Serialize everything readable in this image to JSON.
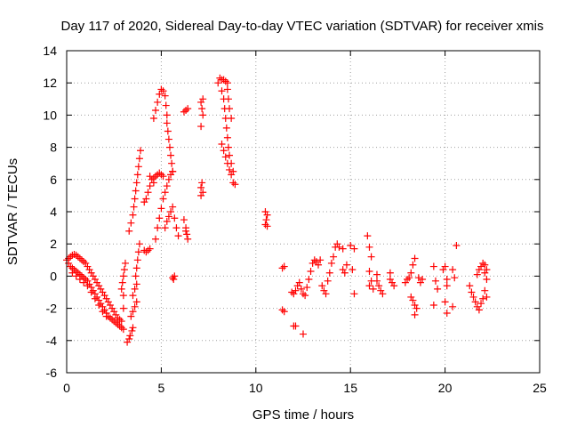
{
  "chart_data": {
    "type": "scatter",
    "title": "Day 117 of 2020, Sidereal Day-to-day VTEC variation (SDTVAR) for receiver xmis",
    "xlabel": "GPS time / hours",
    "ylabel": "SDTVAR / TECUs",
    "xlim": [
      0,
      25
    ],
    "ylim": [
      -6,
      14
    ],
    "xticks": [
      0,
      5,
      10,
      15,
      20,
      25
    ],
    "yticks": [
      -6,
      -4,
      -2,
      0,
      2,
      4,
      6,
      8,
      10,
      12,
      14
    ],
    "grid": true,
    "marker": "+",
    "marker_color": "#ff0000",
    "series": [
      {
        "name": "SDTVAR",
        "points": [
          [
            0.0,
            1.0
          ],
          [
            0.1,
            1.1
          ],
          [
            0.2,
            1.2
          ],
          [
            0.3,
            1.3
          ],
          [
            0.4,
            1.35
          ],
          [
            0.5,
            1.3
          ],
          [
            0.6,
            1.2
          ],
          [
            0.7,
            1.1
          ],
          [
            0.8,
            1.0
          ],
          [
            0.9,
            0.9
          ],
          [
            1.0,
            0.8
          ],
          [
            1.1,
            0.6
          ],
          [
            1.2,
            0.4
          ],
          [
            1.3,
            0.2
          ],
          [
            1.4,
            0.0
          ],
          [
            1.5,
            -0.2
          ],
          [
            1.6,
            -0.4
          ],
          [
            1.7,
            -0.6
          ],
          [
            1.8,
            -0.8
          ],
          [
            1.9,
            -1.0
          ],
          [
            2.0,
            -1.2
          ],
          [
            2.1,
            -1.4
          ],
          [
            2.2,
            -1.6
          ],
          [
            2.3,
            -1.8
          ],
          [
            2.4,
            -2.0
          ],
          [
            2.5,
            -2.2
          ],
          [
            2.6,
            -2.4
          ],
          [
            2.7,
            -2.6
          ],
          [
            2.8,
            -2.7
          ],
          [
            2.9,
            -2.8
          ],
          [
            0.1,
            0.8
          ],
          [
            0.2,
            0.6
          ],
          [
            0.3,
            0.5
          ],
          [
            0.4,
            0.4
          ],
          [
            0.5,
            0.3
          ],
          [
            0.6,
            0.2
          ],
          [
            0.7,
            0.1
          ],
          [
            0.8,
            0.0
          ],
          [
            0.9,
            -0.1
          ],
          [
            1.0,
            -0.2
          ],
          [
            1.1,
            -0.3
          ],
          [
            1.2,
            -0.5
          ],
          [
            1.3,
            -0.7
          ],
          [
            1.4,
            -0.9
          ],
          [
            1.5,
            -1.1
          ],
          [
            1.6,
            -1.3
          ],
          [
            1.7,
            -1.5
          ],
          [
            1.8,
            -1.7
          ],
          [
            1.9,
            -1.9
          ],
          [
            2.0,
            -2.1
          ],
          [
            2.1,
            -2.3
          ],
          [
            2.2,
            -2.5
          ],
          [
            2.3,
            -2.6
          ],
          [
            2.4,
            -2.7
          ],
          [
            2.5,
            -2.8
          ],
          [
            2.6,
            -2.9
          ],
          [
            2.7,
            -3.0
          ],
          [
            2.8,
            -3.1
          ],
          [
            2.9,
            -3.2
          ],
          [
            3.0,
            -3.3
          ],
          [
            0.3,
            0.2
          ],
          [
            0.5,
            0.0
          ],
          [
            0.7,
            -0.2
          ],
          [
            0.9,
            -0.4
          ],
          [
            1.1,
            -0.6
          ],
          [
            1.3,
            -1.0
          ],
          [
            1.5,
            -1.4
          ],
          [
            1.7,
            -1.8
          ],
          [
            1.9,
            -2.2
          ],
          [
            2.1,
            -2.5
          ],
          [
            2.9,
            -0.8
          ],
          [
            2.95,
            -0.4
          ],
          [
            3.0,
            0.0
          ],
          [
            3.05,
            0.4
          ],
          [
            3.1,
            0.8
          ],
          [
            3.0,
            -1.2
          ],
          [
            3.0,
            -2.0
          ],
          [
            3.2,
            -4.1
          ],
          [
            3.3,
            -3.9
          ],
          [
            3.35,
            -3.7
          ],
          [
            3.45,
            -3.4
          ],
          [
            3.5,
            -3.2
          ],
          [
            3.4,
            -2.5
          ],
          [
            3.5,
            -2.2
          ],
          [
            3.6,
            -1.9
          ],
          [
            3.7,
            -1.6
          ],
          [
            3.5,
            -1.2
          ],
          [
            3.6,
            -0.8
          ],
          [
            3.7,
            -0.5
          ],
          [
            3.65,
            0.0
          ],
          [
            3.7,
            0.5
          ],
          [
            3.75,
            1.0
          ],
          [
            3.8,
            1.5
          ],
          [
            3.85,
            2.0
          ],
          [
            3.3,
            2.8
          ],
          [
            3.4,
            3.3
          ],
          [
            3.5,
            3.8
          ],
          [
            3.55,
            4.3
          ],
          [
            3.6,
            4.8
          ],
          [
            3.65,
            5.3
          ],
          [
            3.7,
            5.8
          ],
          [
            3.75,
            6.3
          ],
          [
            3.8,
            6.8
          ],
          [
            3.85,
            7.3
          ],
          [
            3.9,
            7.8
          ],
          [
            4.1,
            4.6
          ],
          [
            4.2,
            4.8
          ],
          [
            4.3,
            5.2
          ],
          [
            4.4,
            5.6
          ],
          [
            4.5,
            6.0
          ],
          [
            4.6,
            5.8
          ],
          [
            4.4,
            6.2
          ],
          [
            4.1,
            1.6
          ],
          [
            4.2,
            1.5
          ],
          [
            4.3,
            1.6
          ],
          [
            4.4,
            1.7
          ],
          [
            4.6,
            6.1
          ],
          [
            4.7,
            6.2
          ],
          [
            4.8,
            6.3
          ],
          [
            4.9,
            6.4
          ],
          [
            5.0,
            6.3
          ],
          [
            5.1,
            6.2
          ],
          [
            4.6,
            9.8
          ],
          [
            4.7,
            10.3
          ],
          [
            4.8,
            10.8
          ],
          [
            4.9,
            11.3
          ],
          [
            5.0,
            11.6
          ],
          [
            5.1,
            11.5
          ],
          [
            5.2,
            11.2
          ],
          [
            5.25,
            10.6
          ],
          [
            5.3,
            10.0
          ],
          [
            5.3,
            9.5
          ],
          [
            5.35,
            9.0
          ],
          [
            5.4,
            8.5
          ],
          [
            5.45,
            8.0
          ],
          [
            5.5,
            7.5
          ],
          [
            5.55,
            7.0
          ],
          [
            5.6,
            6.5
          ],
          [
            4.7,
            2.3
          ],
          [
            4.8,
            3.0
          ],
          [
            4.9,
            3.6
          ],
          [
            5.0,
            4.2
          ],
          [
            5.1,
            4.8
          ],
          [
            5.2,
            5.2
          ],
          [
            5.3,
            5.6
          ],
          [
            5.4,
            6.0
          ],
          [
            5.5,
            6.3
          ],
          [
            5.6,
            6.5
          ],
          [
            5.2,
            3.0
          ],
          [
            5.3,
            3.4
          ],
          [
            5.4,
            3.7
          ],
          [
            5.5,
            4.0
          ],
          [
            5.6,
            4.3
          ],
          [
            5.7,
            3.6
          ],
          [
            5.8,
            3.0
          ],
          [
            5.9,
            2.5
          ],
          [
            5.6,
            -0.1
          ],
          [
            5.7,
            0.0
          ],
          [
            5.65,
            -0.2
          ],
          [
            6.2,
            3.5
          ],
          [
            6.3,
            3.0
          ],
          [
            6.35,
            2.6
          ],
          [
            6.4,
            2.3
          ],
          [
            6.3,
            2.8
          ],
          [
            6.2,
            10.2
          ],
          [
            6.3,
            10.3
          ],
          [
            6.4,
            10.4
          ],
          [
            7.1,
            10.8
          ],
          [
            7.15,
            10.4
          ],
          [
            7.2,
            10.0
          ],
          [
            7.1,
            9.3
          ],
          [
            7.2,
            11.0
          ],
          [
            7.1,
            5.5
          ],
          [
            7.15,
            5.8
          ],
          [
            7.2,
            5.2
          ],
          [
            7.1,
            5.0
          ],
          [
            8.0,
            12.0
          ],
          [
            8.1,
            12.3
          ],
          [
            8.2,
            12.2
          ],
          [
            8.3,
            12.2
          ],
          [
            8.4,
            12.1
          ],
          [
            8.5,
            12.0
          ],
          [
            8.5,
            11.6
          ],
          [
            8.55,
            11.0
          ],
          [
            8.6,
            10.4
          ],
          [
            8.7,
            9.8
          ],
          [
            8.2,
            11.5
          ],
          [
            8.3,
            11.0
          ],
          [
            8.35,
            10.4
          ],
          [
            8.4,
            9.8
          ],
          [
            8.45,
            9.2
          ],
          [
            8.5,
            8.6
          ],
          [
            8.55,
            8.0
          ],
          [
            8.6,
            7.5
          ],
          [
            8.7,
            7.0
          ],
          [
            8.8,
            6.5
          ],
          [
            8.2,
            8.2
          ],
          [
            8.3,
            7.8
          ],
          [
            8.4,
            7.4
          ],
          [
            8.5,
            7.0
          ],
          [
            8.6,
            6.6
          ],
          [
            8.7,
            6.3
          ],
          [
            8.8,
            5.8
          ],
          [
            8.9,
            5.7
          ],
          [
            10.5,
            3.2
          ],
          [
            10.55,
            3.5
          ],
          [
            10.6,
            3.8
          ],
          [
            10.5,
            4.0
          ],
          [
            10.6,
            3.1
          ],
          [
            11.4,
            0.5
          ],
          [
            11.5,
            0.6
          ],
          [
            11.4,
            -2.1
          ],
          [
            11.5,
            -2.2
          ],
          [
            12.0,
            -3.1
          ],
          [
            12.1,
            -3.1
          ],
          [
            12.5,
            -3.6
          ],
          [
            11.9,
            -1.0
          ],
          [
            12.0,
            -1.1
          ],
          [
            12.1,
            -0.9
          ],
          [
            12.2,
            -0.6
          ],
          [
            12.3,
            -0.4
          ],
          [
            12.4,
            -0.8
          ],
          [
            12.5,
            -1.1
          ],
          [
            12.6,
            -1.2
          ],
          [
            12.7,
            -0.7
          ],
          [
            12.8,
            -0.2
          ],
          [
            12.9,
            0.3
          ],
          [
            13.0,
            0.8
          ],
          [
            13.1,
            1.0
          ],
          [
            13.2,
            0.9
          ],
          [
            13.3,
            0.7
          ],
          [
            13.4,
            1.0
          ],
          [
            13.5,
            -0.6
          ],
          [
            13.6,
            -0.9
          ],
          [
            13.7,
            -1.1
          ],
          [
            13.8,
            -0.3
          ],
          [
            13.9,
            0.2
          ],
          [
            14.0,
            0.8
          ],
          [
            14.1,
            1.2
          ],
          [
            14.2,
            1.8
          ],
          [
            14.3,
            2.0
          ],
          [
            14.4,
            1.8
          ],
          [
            14.6,
            1.7
          ],
          [
            14.6,
            0.4
          ],
          [
            14.7,
            0.2
          ],
          [
            14.8,
            0.7
          ],
          [
            15.0,
            1.9
          ],
          [
            15.2,
            1.7
          ],
          [
            15.1,
            0.4
          ],
          [
            15.2,
            -1.1
          ],
          [
            15.9,
            2.5
          ],
          [
            16.0,
            1.8
          ],
          [
            16.1,
            1.2
          ],
          [
            16.0,
            0.3
          ],
          [
            16.1,
            -0.3
          ],
          [
            16.2,
            -0.8
          ],
          [
            16.0,
            -0.6
          ],
          [
            16.4,
            0.1
          ],
          [
            16.5,
            -0.6
          ],
          [
            16.6,
            -0.9
          ],
          [
            16.7,
            -1.1
          ],
          [
            16.4,
            -0.3
          ],
          [
            17.1,
            -0.2
          ],
          [
            17.2,
            -0.4
          ],
          [
            17.3,
            -0.6
          ],
          [
            17.1,
            0.2
          ],
          [
            17.9,
            -0.4
          ],
          [
            18.0,
            -0.2
          ],
          [
            18.1,
            -0.1
          ],
          [
            18.2,
            0.2
          ],
          [
            18.3,
            0.7
          ],
          [
            18.4,
            1.1
          ],
          [
            18.3,
            -1.5
          ],
          [
            18.4,
            -1.8
          ],
          [
            18.5,
            -2.0
          ],
          [
            18.4,
            -2.4
          ],
          [
            18.2,
            -1.3
          ],
          [
            18.6,
            -0.1
          ],
          [
            18.7,
            -0.4
          ],
          [
            18.8,
            -0.2
          ],
          [
            19.4,
            0.6
          ],
          [
            19.5,
            -0.3
          ],
          [
            19.6,
            -0.8
          ],
          [
            19.4,
            -1.8
          ],
          [
            19.9,
            0.4
          ],
          [
            20.0,
            0.6
          ],
          [
            20.1,
            -0.6
          ],
          [
            20.1,
            -0.2
          ],
          [
            20.0,
            -1.6
          ],
          [
            20.1,
            -2.3
          ],
          [
            20.4,
            0.4
          ],
          [
            20.5,
            -0.1
          ],
          [
            20.6,
            1.9
          ],
          [
            20.4,
            -1.9
          ],
          [
            21.3,
            -0.6
          ],
          [
            21.4,
            -1.0
          ],
          [
            21.5,
            -1.3
          ],
          [
            21.6,
            -1.6
          ],
          [
            21.7,
            -1.9
          ],
          [
            21.8,
            -2.1
          ],
          [
            21.9,
            -1.7
          ],
          [
            22.0,
            -1.4
          ],
          [
            21.7,
            0.1
          ],
          [
            21.8,
            0.4
          ],
          [
            21.9,
            0.6
          ],
          [
            22.0,
            0.8
          ],
          [
            22.1,
            0.7
          ],
          [
            22.2,
            0.4
          ],
          [
            22.1,
            0.2
          ],
          [
            22.2,
            -0.2
          ],
          [
            22.1,
            -0.9
          ],
          [
            22.2,
            -1.3
          ]
        ]
      }
    ]
  }
}
